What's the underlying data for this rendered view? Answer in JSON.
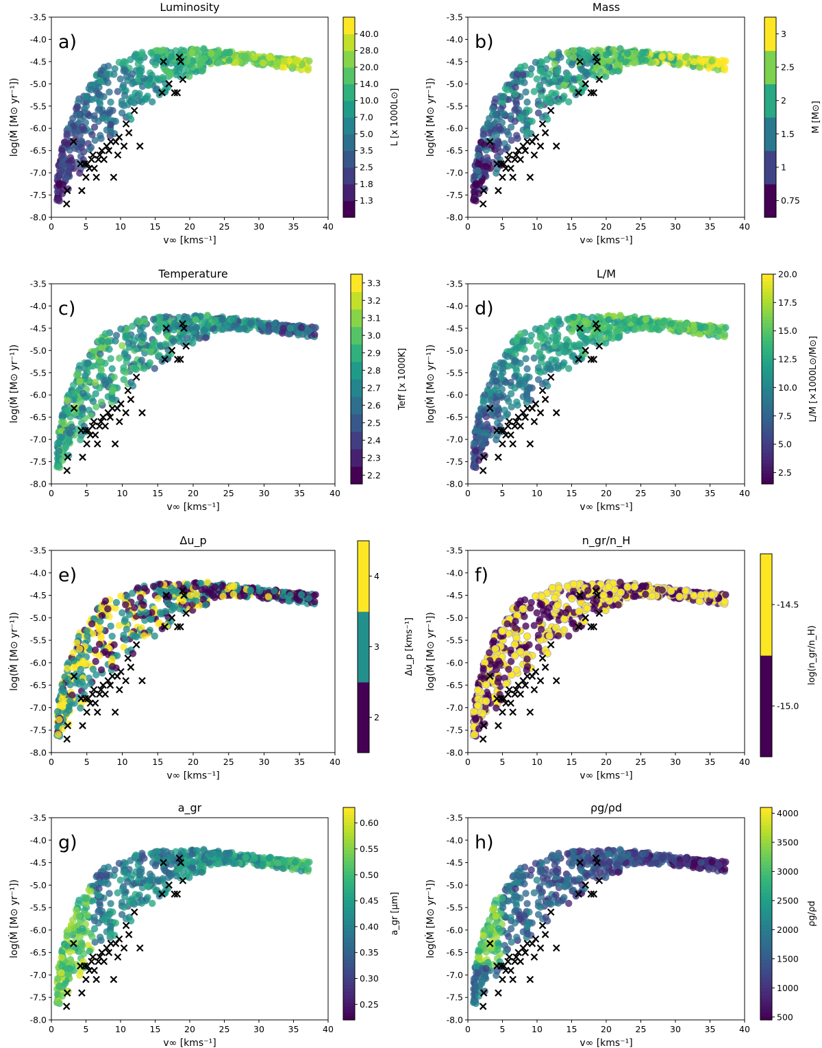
{
  "figure": {
    "x_label": "v∞ [kms⁻¹]",
    "y_label": "log(Ṁ [M⊙ yr⁻¹])",
    "x_ticks": [
      "0",
      "5",
      "10",
      "15",
      "20",
      "25",
      "30",
      "35",
      "40"
    ],
    "y_ticks": [
      "-3.5",
      "-4.0",
      "-4.5",
      "-5.0",
      "-5.5",
      "-6.0",
      "-6.5",
      "-7.0",
      "-7.5",
      "-8.0"
    ],
    "xlim": [
      0,
      40
    ],
    "ylim": [
      -8.0,
      -3.5
    ]
  },
  "panels": [
    {
      "letter": "a)",
      "title": "Luminosity",
      "cbar_label": "L [x 1000L⊙]",
      "cbar_ticks": [
        "1.3",
        "1.8",
        "2.5",
        "3.5",
        "5.0",
        "7.0",
        "10.0",
        "14.0",
        "20.0",
        "28.0",
        "40.0"
      ],
      "cbar_type": "discrete",
      "cbar_levels": 12,
      "cbar_ticks_centered": true
    },
    {
      "letter": "b)",
      "title": "Mass",
      "cbar_label": "M [M⊙]",
      "cbar_ticks": [
        "0.75",
        "1",
        "1.5",
        "2",
        "2.5",
        "3"
      ],
      "cbar_type": "discrete",
      "cbar_levels": 6,
      "cbar_ticks_centered": true
    },
    {
      "letter": "c)",
      "title": "Temperature",
      "cbar_label": "Teff [x 1000K]",
      "cbar_ticks": [
        "2.2",
        "2.3",
        "2.4",
        "2.5",
        "2.6",
        "2.7",
        "2.8",
        "2.9",
        "3.0",
        "3.1",
        "3.2",
        "3.3"
      ],
      "cbar_type": "discrete",
      "cbar_levels": 12,
      "cbar_ticks_centered": true
    },
    {
      "letter": "d)",
      "title": "L/M",
      "cbar_label": "L/M [×1000L⊙/M⊙]",
      "cbar_ticks": [
        "2.5",
        "5.0",
        "7.5",
        "10.0",
        "12.5",
        "15.0",
        "17.5",
        "20.0"
      ],
      "cbar_type": "continuous",
      "cbar_range": [
        1.5,
        20.0
      ]
    },
    {
      "letter": "e)",
      "title": "Δu_p",
      "cbar_label": "Δu_p [kms⁻¹]",
      "cbar_ticks": [
        "2",
        "3",
        "4"
      ],
      "cbar_type": "discrete",
      "cbar_levels": 3,
      "cbar_ticks_centered": true
    },
    {
      "letter": "f)",
      "title": "n_gr/n_H",
      "cbar_label": "log(n_gr/n_H)",
      "cbar_ticks": [
        "-15.0",
        "-14.5"
      ],
      "cbar_type": "discrete",
      "cbar_levels": 2,
      "cbar_ticks_centered": true
    },
    {
      "letter": "g)",
      "title": "a_gr",
      "cbar_label": "a_gr [μm]",
      "cbar_ticks": [
        "0.25",
        "0.30",
        "0.35",
        "0.40",
        "0.45",
        "0.50",
        "0.55",
        "0.60"
      ],
      "cbar_type": "continuous",
      "cbar_range": [
        0.22,
        0.63
      ]
    },
    {
      "letter": "h)",
      "title": "ρg/ρd",
      "cbar_label": "ρg/ρd",
      "cbar_ticks": [
        "500",
        "1000",
        "1500",
        "2000",
        "2500",
        "3000",
        "3500",
        "4000"
      ],
      "cbar_type": "continuous",
      "cbar_range": [
        450,
        4100
      ]
    }
  ],
  "chart_data": {
    "type": "scatter",
    "note": "Model grid (colored circles) of mass-loss rate vs wind velocity; observed stars shown as black crosses. Same points plotted in every panel, colored by a different parameter.",
    "observed_crosses": [
      {
        "x": 2.2,
        "y": -7.7
      },
      {
        "x": 2.3,
        "y": -7.4
      },
      {
        "x": 3.2,
        "y": -6.3
      },
      {
        "x": 4.2,
        "y": -6.8
      },
      {
        "x": 4.4,
        "y": -7.4
      },
      {
        "x": 4.8,
        "y": -6.8
      },
      {
        "x": 5.0,
        "y": -7.1
      },
      {
        "x": 5.2,
        "y": -6.8
      },
      {
        "x": 5.5,
        "y": -6.9
      },
      {
        "x": 5.8,
        "y": -6.7
      },
      {
        "x": 6.0,
        "y": -6.6
      },
      {
        "x": 6.2,
        "y": -6.9
      },
      {
        "x": 6.5,
        "y": -7.1
      },
      {
        "x": 6.8,
        "y": -6.7
      },
      {
        "x": 7.0,
        "y": -6.6
      },
      {
        "x": 7.3,
        "y": -6.5
      },
      {
        "x": 7.6,
        "y": -6.7
      },
      {
        "x": 8.0,
        "y": -6.4
      },
      {
        "x": 8.3,
        "y": -6.5
      },
      {
        "x": 8.6,
        "y": -6.3
      },
      {
        "x": 9.0,
        "y": -7.1
      },
      {
        "x": 9.3,
        "y": -6.3
      },
      {
        "x": 9.6,
        "y": -6.6
      },
      {
        "x": 9.8,
        "y": -6.2
      },
      {
        "x": 10.5,
        "y": -6.4
      },
      {
        "x": 10.8,
        "y": -5.9
      },
      {
        "x": 11.2,
        "y": -6.1
      },
      {
        "x": 12.0,
        "y": -5.6
      },
      {
        "x": 12.8,
        "y": -6.4
      },
      {
        "x": 16.0,
        "y": -5.2
      },
      {
        "x": 16.2,
        "y": -4.5
      },
      {
        "x": 17.0,
        "y": -5.0
      },
      {
        "x": 17.8,
        "y": -5.2
      },
      {
        "x": 18.2,
        "y": -5.2
      },
      {
        "x": 18.5,
        "y": -4.4
      },
      {
        "x": 18.7,
        "y": -4.5
      },
      {
        "x": 19.0,
        "y": -4.9
      }
    ]
  }
}
